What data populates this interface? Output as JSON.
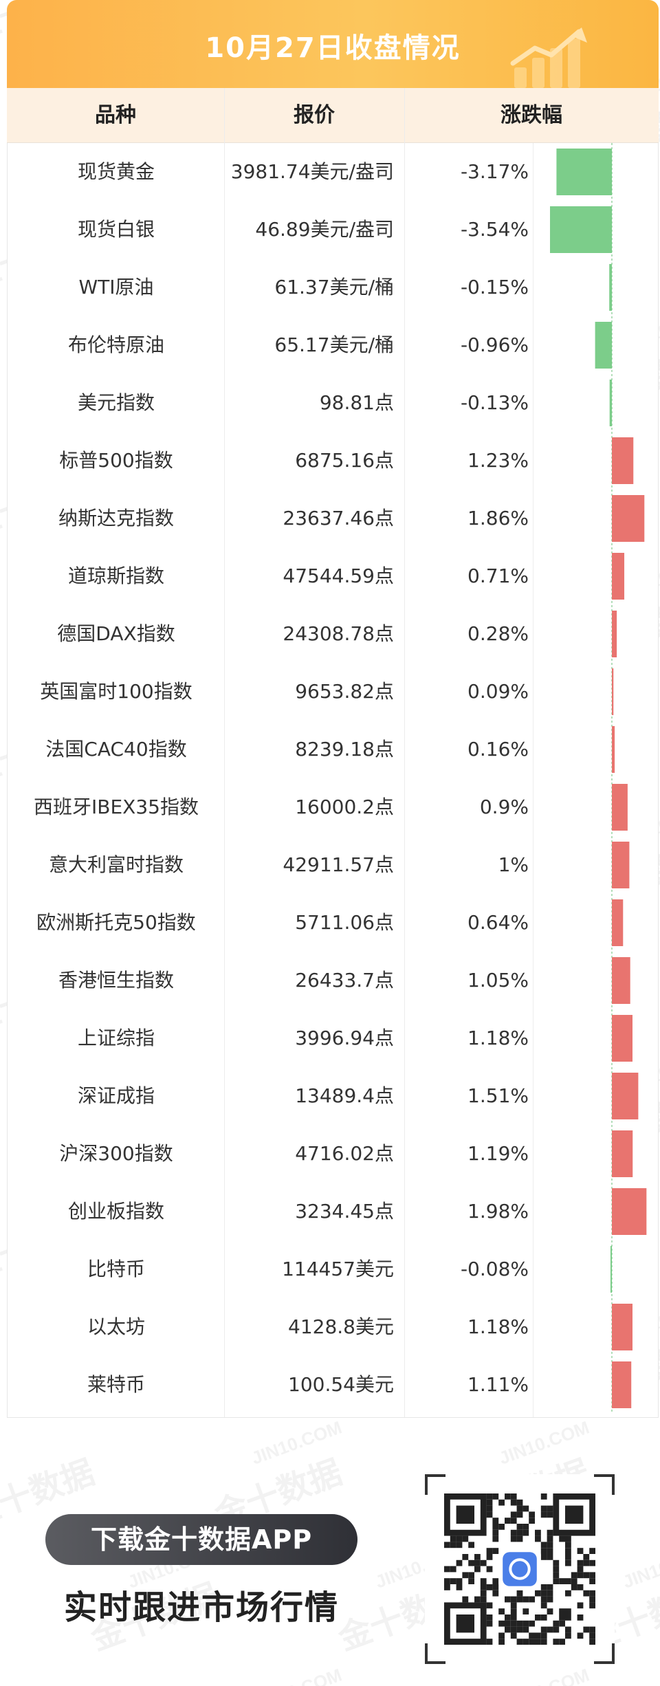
{
  "header": {
    "title": "10月27日收盘情况"
  },
  "columns": {
    "name": "品种",
    "price": "报价",
    "change": "涨跌幅"
  },
  "rows": [
    {
      "name": "现货黄金",
      "price": "3981.74美元/盎司",
      "change": "-3.17%"
    },
    {
      "name": "现货白银",
      "price": "46.89美元/盎司",
      "change": "-3.54%"
    },
    {
      "name": "WTI原油",
      "price": "61.37美元/桶",
      "change": "-0.15%"
    },
    {
      "name": "布伦特原油",
      "price": "65.17美元/桶",
      "change": "-0.96%"
    },
    {
      "name": "美元指数",
      "price": "98.81点",
      "change": "-0.13%"
    },
    {
      "name": "标普500指数",
      "price": "6875.16点",
      "change": "1.23%"
    },
    {
      "name": "纳斯达克指数",
      "price": "23637.46点",
      "change": "1.86%"
    },
    {
      "name": "道琼斯指数",
      "price": "47544.59点",
      "change": "0.71%"
    },
    {
      "name": "德国DAX指数",
      "price": "24308.78点",
      "change": "0.28%"
    },
    {
      "name": "英国富时100指数",
      "price": "9653.82点",
      "change": "0.09%"
    },
    {
      "name": "法国CAC40指数",
      "price": "8239.18点",
      "change": "0.16%"
    },
    {
      "name": "西班牙IBEX35指数",
      "price": "16000.2点",
      "change": "0.9%"
    },
    {
      "name": "意大利富时指数",
      "price": "42911.57点",
      "change": "1%"
    },
    {
      "name": "欧洲斯托克50指数",
      "price": "5711.06点",
      "change": "0.64%"
    },
    {
      "name": "香港恒生指数",
      "price": "26433.7点",
      "change": "1.05%"
    },
    {
      "name": "上证综指",
      "price": "3996.94点",
      "change": "1.18%"
    },
    {
      "name": "深证成指",
      "price": "13489.4点",
      "change": "1.51%"
    },
    {
      "name": "沪深300指数",
      "price": "4716.02点",
      "change": "1.19%"
    },
    {
      "name": "创业板指数",
      "price": "3234.45点",
      "change": "1.98%"
    },
    {
      "name": "比特币",
      "price": "114457美元",
      "change": "-0.08%"
    },
    {
      "name": "以太坊",
      "price": "4128.8美元",
      "change": "1.18%"
    },
    {
      "name": "莱特币",
      "price": "100.54美元",
      "change": "1.11%"
    }
  ],
  "chart_data": {
    "type": "bar",
    "orientation": "horizontal",
    "categories": [
      "现货黄金",
      "现货白银",
      "WTI原油",
      "布伦特原油",
      "美元指数",
      "标普500指数",
      "纳斯达克指数",
      "道琼斯指数",
      "德国DAX指数",
      "英国富时100指数",
      "法国CAC40指数",
      "西班牙IBEX35指数",
      "意大利富时指数",
      "欧洲斯托克50指数",
      "香港恒生指数",
      "上证综指",
      "深证成指",
      "沪深300指数",
      "创业板指数",
      "比特币",
      "以太坊",
      "莱特币"
    ],
    "values": [
      -3.17,
      -3.54,
      -0.15,
      -0.96,
      -0.13,
      1.23,
      1.86,
      0.71,
      0.28,
      0.09,
      0.16,
      0.9,
      1,
      0.64,
      1.05,
      1.18,
      1.51,
      1.19,
      1.98,
      -0.08,
      1.18,
      1.11
    ],
    "xlim": [
      -3.54,
      1.98
    ],
    "colors": {
      "positive": "#e8746f",
      "negative": "#7ccd8a"
    }
  },
  "watermark": {
    "cn": "金十数据",
    "en": "JIN10.COM"
  },
  "promo": {
    "download": "下载金十数据APP",
    "slogan": "实时跟进市场行情"
  },
  "colors": {
    "header_start": "#fdb24a",
    "header_end": "#fbb642",
    "thead_bg": "#fdf0e1"
  }
}
